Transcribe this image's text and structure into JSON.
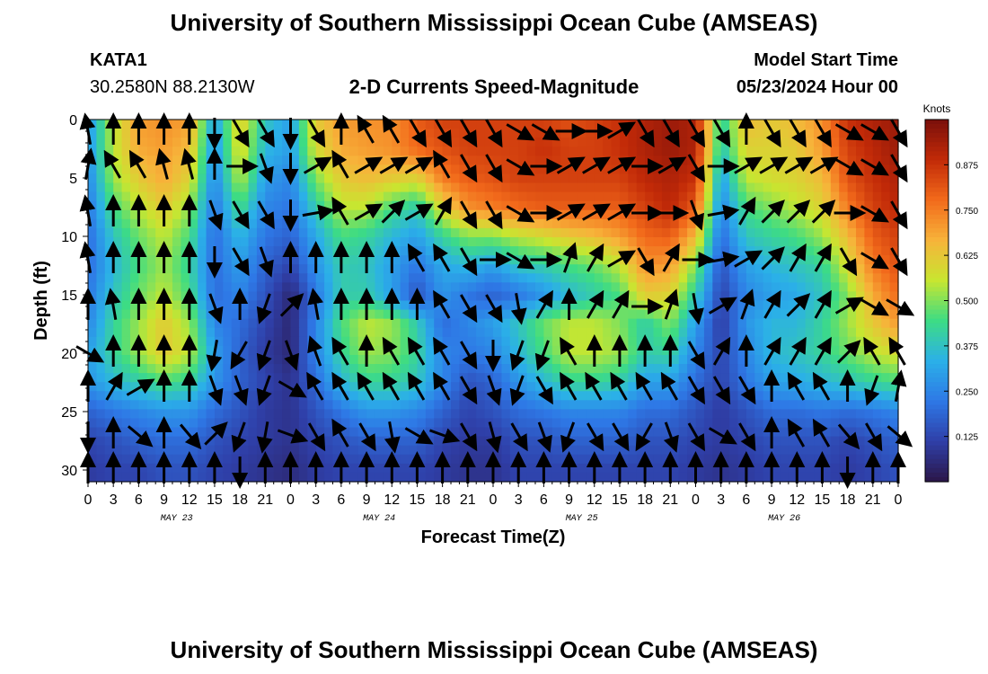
{
  "header": {
    "title": "University of Southern Mississippi Ocean Cube (AMSEAS)",
    "station_id": "KATA1",
    "coordinates": "30.2580N  88.2130W",
    "plot_title": "2-D Currents Speed-Magnitude",
    "model_start_label": "Model Start Time",
    "model_start_date": "05/23/2024 Hour 00"
  },
  "footer": {
    "title": "University of Southern Mississippi Ocean Cube (AMSEAS)"
  },
  "colors": {
    "colormap": [
      "#2b1648",
      "#2f3fa8",
      "#2e78e6",
      "#2bb0e8",
      "#3ddc84",
      "#c8e630",
      "#f7b33a",
      "#f26a1b",
      "#c22a08",
      "#7a0f0b"
    ],
    "arrow": "#000000"
  },
  "chart_data": {
    "type": "heatmap",
    "xlabel": "Forecast Time(Z)",
    "ylabel": "Depth (ft)",
    "colorbar_label": "Knots",
    "colorbar_ticks": [
      "0.125",
      "0.250",
      "0.375",
      "0.500",
      "0.625",
      "0.750",
      "0.875"
    ],
    "colorbar_range": [
      0,
      1.0
    ],
    "xlim_hours": [
      0,
      96
    ],
    "ylim_ft": [
      0,
      31
    ],
    "x_tick_labels": [
      "0",
      "3",
      "6",
      "9",
      "12",
      "15",
      "18",
      "21",
      "0",
      "3",
      "6",
      "9",
      "12",
      "15",
      "18",
      "21",
      "0",
      "3",
      "6",
      "9",
      "12",
      "15",
      "18",
      "21",
      "0",
      "3",
      "6",
      "9",
      "12",
      "15",
      "18",
      "21",
      "0"
    ],
    "day_labels": [
      "MAY 23",
      "MAY 24",
      "MAY 25",
      "MAY 26"
    ],
    "y_ticks": [
      0,
      5,
      10,
      15,
      20,
      25,
      30
    ],
    "depth_rows_ft": [
      0,
      2.5,
      5,
      7.5,
      10,
      12.5,
      15,
      17.5,
      20,
      22.5,
      25,
      27.5,
      30
    ],
    "time_cols_hours": [
      0,
      3,
      6,
      9,
      12,
      15,
      18,
      21,
      24,
      27,
      30,
      33,
      36,
      39,
      42,
      45,
      48,
      51,
      54,
      57,
      60,
      63,
      66,
      69,
      72,
      75,
      78,
      81,
      84,
      87,
      90,
      93,
      96
    ],
    "speed_knots": [
      [
        0.28,
        0.55,
        0.7,
        0.72,
        0.7,
        0.3,
        0.62,
        0.38,
        0.3,
        0.62,
        0.7,
        0.72,
        0.72,
        0.8,
        0.85,
        0.85,
        0.85,
        0.85,
        0.85,
        0.82,
        0.85,
        0.88,
        0.92,
        0.95,
        0.92,
        0.4,
        0.65,
        0.62,
        0.65,
        0.72,
        0.88,
        0.92,
        0.95
      ],
      [
        0.28,
        0.55,
        0.68,
        0.7,
        0.65,
        0.28,
        0.6,
        0.35,
        0.3,
        0.58,
        0.68,
        0.7,
        0.72,
        0.78,
        0.82,
        0.85,
        0.85,
        0.85,
        0.88,
        0.85,
        0.85,
        0.88,
        0.92,
        0.95,
        0.92,
        0.38,
        0.6,
        0.6,
        0.62,
        0.7,
        0.85,
        0.9,
        0.95
      ],
      [
        0.25,
        0.52,
        0.62,
        0.68,
        0.6,
        0.25,
        0.55,
        0.3,
        0.25,
        0.5,
        0.62,
        0.65,
        0.62,
        0.6,
        0.75,
        0.8,
        0.82,
        0.85,
        0.85,
        0.85,
        0.85,
        0.85,
        0.9,
        0.92,
        0.88,
        0.3,
        0.55,
        0.58,
        0.6,
        0.65,
        0.82,
        0.88,
        0.92
      ],
      [
        0.22,
        0.45,
        0.55,
        0.62,
        0.52,
        0.22,
        0.45,
        0.25,
        0.22,
        0.4,
        0.55,
        0.55,
        0.45,
        0.4,
        0.6,
        0.72,
        0.75,
        0.78,
        0.8,
        0.8,
        0.8,
        0.8,
        0.85,
        0.9,
        0.8,
        0.25,
        0.45,
        0.5,
        0.55,
        0.6,
        0.75,
        0.85,
        0.9
      ],
      [
        0.2,
        0.38,
        0.48,
        0.55,
        0.45,
        0.2,
        0.35,
        0.22,
        0.18,
        0.32,
        0.45,
        0.42,
        0.35,
        0.3,
        0.42,
        0.5,
        0.5,
        0.55,
        0.58,
        0.62,
        0.65,
        0.7,
        0.78,
        0.8,
        0.65,
        0.2,
        0.38,
        0.42,
        0.45,
        0.52,
        0.65,
        0.8,
        0.85
      ],
      [
        0.2,
        0.35,
        0.45,
        0.52,
        0.42,
        0.2,
        0.3,
        0.18,
        0.12,
        0.28,
        0.4,
        0.38,
        0.3,
        0.22,
        0.32,
        0.35,
        0.3,
        0.38,
        0.4,
        0.45,
        0.48,
        0.55,
        0.72,
        0.7,
        0.5,
        0.15,
        0.3,
        0.35,
        0.38,
        0.42,
        0.58,
        0.75,
        0.82
      ],
      [
        0.22,
        0.38,
        0.48,
        0.55,
        0.45,
        0.2,
        0.25,
        0.15,
        0.05,
        0.22,
        0.4,
        0.4,
        0.3,
        0.15,
        0.28,
        0.22,
        0.18,
        0.22,
        0.28,
        0.35,
        0.4,
        0.45,
        0.62,
        0.6,
        0.4,
        0.12,
        0.25,
        0.3,
        0.32,
        0.38,
        0.5,
        0.68,
        0.78
      ],
      [
        0.25,
        0.42,
        0.52,
        0.62,
        0.52,
        0.25,
        0.2,
        0.12,
        0.05,
        0.25,
        0.45,
        0.55,
        0.52,
        0.4,
        0.2,
        0.25,
        0.3,
        0.38,
        0.48,
        0.55,
        0.55,
        0.5,
        0.4,
        0.5,
        0.3,
        0.1,
        0.28,
        0.35,
        0.35,
        0.42,
        0.52,
        0.62,
        0.7
      ],
      [
        0.3,
        0.42,
        0.52,
        0.62,
        0.55,
        0.3,
        0.18,
        0.1,
        0.05,
        0.25,
        0.42,
        0.52,
        0.5,
        0.42,
        0.25,
        0.22,
        0.25,
        0.35,
        0.45,
        0.55,
        0.55,
        0.52,
        0.4,
        0.42,
        0.25,
        0.12,
        0.25,
        0.35,
        0.38,
        0.42,
        0.48,
        0.55,
        0.58
      ],
      [
        0.28,
        0.35,
        0.4,
        0.45,
        0.42,
        0.28,
        0.18,
        0.12,
        0.08,
        0.2,
        0.35,
        0.42,
        0.42,
        0.38,
        0.25,
        0.15,
        0.18,
        0.28,
        0.35,
        0.42,
        0.42,
        0.4,
        0.3,
        0.3,
        0.2,
        0.12,
        0.22,
        0.3,
        0.32,
        0.35,
        0.38,
        0.42,
        0.45
      ],
      [
        0.18,
        0.22,
        0.25,
        0.28,
        0.28,
        0.2,
        0.15,
        0.1,
        0.08,
        0.15,
        0.22,
        0.28,
        0.28,
        0.25,
        0.18,
        0.12,
        0.15,
        0.2,
        0.22,
        0.25,
        0.25,
        0.25,
        0.2,
        0.2,
        0.15,
        0.1,
        0.15,
        0.2,
        0.2,
        0.22,
        0.2,
        0.22,
        0.25
      ],
      [
        0.12,
        0.15,
        0.18,
        0.2,
        0.2,
        0.15,
        0.12,
        0.1,
        0.08,
        0.12,
        0.15,
        0.18,
        0.18,
        0.18,
        0.12,
        0.1,
        0.1,
        0.15,
        0.15,
        0.18,
        0.18,
        0.18,
        0.15,
        0.15,
        0.12,
        0.1,
        0.12,
        0.15,
        0.15,
        0.15,
        0.12,
        0.15,
        0.18
      ],
      [
        0.1,
        0.12,
        0.12,
        0.15,
        0.15,
        0.12,
        0.1,
        0.08,
        0.06,
        0.1,
        0.12,
        0.12,
        0.12,
        0.12,
        0.1,
        0.08,
        0.08,
        0.12,
        0.12,
        0.12,
        0.12,
        0.12,
        0.12,
        0.12,
        0.1,
        0.08,
        0.1,
        0.12,
        0.12,
        0.12,
        0.1,
        0.12,
        0.15
      ]
    ],
    "arrow_depths_ft": [
      1,
      4,
      8,
      12,
      16,
      20,
      23,
      27,
      30
    ],
    "arrow_times_hours": [
      0,
      3,
      6,
      9,
      12,
      15,
      18,
      21,
      24,
      27,
      30,
      33,
      36,
      39,
      42,
      45,
      48,
      51,
      54,
      57,
      60,
      63,
      66,
      69,
      72,
      75,
      78,
      81,
      84,
      87,
      90,
      93,
      96
    ],
    "arrow_directions_deg": [
      [
        350,
        0,
        0,
        0,
        0,
        180,
        150,
        150,
        180,
        150,
        0,
        330,
        330,
        150,
        150,
        150,
        150,
        120,
        120,
        90,
        90,
        60,
        150,
        150,
        150,
        150,
        0,
        150,
        150,
        150,
        120,
        120,
        150
      ],
      [
        10,
        330,
        330,
        345,
        345,
        0,
        90,
        160,
        180,
        60,
        330,
        60,
        60,
        60,
        330,
        150,
        150,
        120,
        90,
        60,
        60,
        60,
        90,
        60,
        150,
        90,
        60,
        60,
        60,
        60,
        120,
        120,
        150
      ],
      [
        350,
        0,
        0,
        0,
        0,
        160,
        150,
        150,
        180,
        80,
        330,
        60,
        45,
        60,
        30,
        150,
        150,
        120,
        90,
        60,
        60,
        60,
        90,
        90,
        160,
        80,
        30,
        45,
        45,
        45,
        90,
        120,
        150
      ],
      [
        350,
        0,
        0,
        0,
        0,
        180,
        150,
        160,
        0,
        0,
        0,
        0,
        0,
        330,
        330,
        150,
        90,
        120,
        90,
        20,
        30,
        60,
        150,
        30,
        90,
        80,
        60,
        45,
        30,
        30,
        150,
        120,
        150
      ],
      [
        0,
        350,
        0,
        0,
        0,
        160,
        0,
        200,
        45,
        350,
        0,
        0,
        0,
        0,
        330,
        150,
        150,
        170,
        30,
        0,
        30,
        30,
        90,
        20,
        170,
        60,
        20,
        30,
        45,
        30,
        60,
        120,
        120
      ],
      [
        120,
        0,
        0,
        0,
        0,
        190,
        210,
        200,
        160,
        340,
        330,
        0,
        330,
        330,
        330,
        150,
        180,
        200,
        200,
        330,
        0,
        0,
        0,
        0,
        150,
        30,
        0,
        30,
        30,
        30,
        45,
        330,
        330
      ],
      [
        0,
        30,
        60,
        0,
        0,
        160,
        160,
        200,
        120,
        330,
        330,
        330,
        330,
        330,
        330,
        150,
        160,
        200,
        150,
        330,
        330,
        330,
        330,
        330,
        150,
        150,
        150,
        0,
        330,
        330,
        0,
        200,
        10
      ],
      [
        180,
        0,
        130,
        0,
        140,
        45,
        200,
        190,
        110,
        150,
        330,
        150,
        170,
        120,
        110,
        150,
        165,
        150,
        160,
        200,
        150,
        150,
        210,
        160,
        150,
        120,
        150,
        0,
        330,
        330,
        140,
        150,
        130
      ],
      [
        0,
        0,
        0,
        0,
        0,
        0,
        180,
        0,
        0,
        0,
        0,
        0,
        0,
        0,
        0,
        0,
        0,
        0,
        0,
        0,
        0,
        0,
        0,
        0,
        0,
        0,
        0,
        0,
        0,
        0,
        180,
        0,
        0
      ]
    ],
    "annotations": []
  }
}
